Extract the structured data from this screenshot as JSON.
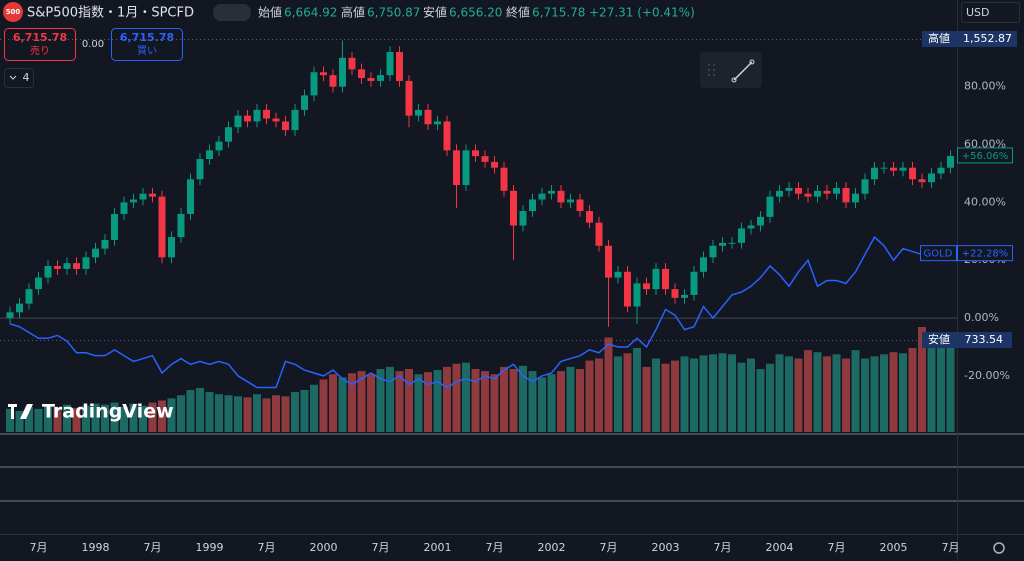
{
  "header": {
    "logo": "500",
    "symbol": "S&P500指数・1月・SPCFD",
    "ohlc": [
      {
        "label": "始値",
        "value": "6,664.92"
      },
      {
        "label": "高値",
        "value": "6,750.87"
      },
      {
        "label": "安値",
        "value": "6,656.20"
      },
      {
        "label": "終値",
        "value": "6,715.78"
      }
    ],
    "change": "+27.31 (+0.41%)"
  },
  "order": {
    "sell_price": "6,715.78",
    "sell_label": "売り",
    "spread": "0.00",
    "buy_price": "6,715.78",
    "buy_label": "買い"
  },
  "indicators_count": "4",
  "currency": "USD",
  "watermark": "TradingView",
  "chart_data": {
    "type": "candlestick",
    "categories": [
      null,
      null,
      null,
      "7月",
      null,
      null,
      null,
      null,
      null,
      "1998",
      null,
      null,
      null,
      null,
      null,
      "7月",
      null,
      null,
      null,
      null,
      null,
      "1999",
      null,
      null,
      null,
      null,
      null,
      "7月",
      null,
      null,
      null,
      null,
      null,
      "2000",
      null,
      null,
      null,
      null,
      null,
      "7月",
      null,
      null,
      null,
      null,
      null,
      "2001",
      null,
      null,
      null,
      null,
      null,
      "7月",
      null,
      null,
      null,
      null,
      null,
      "2002",
      null,
      null,
      null,
      null,
      null,
      "7月",
      null,
      null,
      null,
      null,
      null,
      "2003",
      null,
      null,
      null,
      null,
      null,
      "7月",
      null,
      null,
      null,
      null,
      null,
      "2004",
      null,
      null,
      null,
      null,
      null,
      "7月",
      null,
      null,
      null,
      null,
      null,
      "2005",
      null,
      null,
      null,
      null,
      null,
      "7月"
    ],
    "open": [
      0,
      2,
      5,
      10,
      14,
      18,
      17,
      19,
      17,
      21,
      24,
      27,
      36,
      40,
      41,
      43,
      42,
      21,
      28,
      36,
      48,
      55,
      58,
      61,
      66,
      70,
      68,
      72,
      69,
      68,
      65,
      72,
      77,
      85,
      84,
      80,
      90,
      86,
      83,
      82,
      84,
      92,
      82,
      70,
      72,
      67,
      68,
      58,
      46,
      58,
      56,
      54,
      52,
      44,
      32,
      37,
      41,
      43,
      44,
      40,
      41,
      37,
      33,
      25,
      14,
      16,
      4,
      12,
      10,
      17,
      10,
      7,
      8,
      16,
      21,
      25,
      26,
      26,
      31,
      32,
      35,
      42,
      44,
      45,
      43,
      42,
      44,
      43,
      45,
      40,
      43,
      48,
      52,
      52,
      51,
      52,
      48,
      47,
      50,
      52
    ],
    "high": [
      4,
      7,
      12,
      16,
      20,
      20,
      21,
      21,
      23,
      26,
      29,
      38,
      42,
      43,
      45,
      45,
      44,
      30,
      38,
      50,
      57,
      60,
      63,
      68,
      72,
      72,
      74,
      74,
      71,
      70,
      74,
      79,
      87,
      87,
      86,
      96,
      92,
      88,
      85,
      86,
      94,
      94,
      84,
      74,
      74,
      70,
      70,
      60,
      60,
      60,
      58,
      56,
      54,
      46,
      39,
      43,
      45,
      46,
      46,
      43,
      43,
      39,
      35,
      27,
      18,
      18,
      14,
      14,
      19,
      19,
      12,
      10,
      18,
      23,
      27,
      28,
      28,
      33,
      34,
      37,
      44,
      46,
      47,
      47,
      45,
      46,
      46,
      47,
      47,
      45,
      50,
      54,
      54,
      54,
      54,
      54,
      50,
      52,
      54,
      58
    ],
    "low": [
      -2,
      0,
      3,
      8,
      12,
      15,
      15,
      15,
      15,
      19,
      22,
      25,
      34,
      38,
      39,
      40,
      19,
      19,
      26,
      34,
      46,
      53,
      56,
      59,
      64,
      66,
      66,
      67,
      66,
      63,
      63,
      70,
      75,
      82,
      78,
      78,
      84,
      81,
      80,
      80,
      82,
      80,
      66,
      68,
      65,
      65,
      56,
      38,
      44,
      54,
      52,
      50,
      42,
      20,
      30,
      35,
      39,
      41,
      38,
      38,
      35,
      31,
      23,
      -3,
      12,
      2,
      -2,
      8,
      8,
      8,
      5,
      5,
      6,
      14,
      19,
      23,
      24,
      24,
      29,
      30,
      33,
      40,
      42,
      41,
      40,
      40,
      41,
      41,
      38,
      38,
      41,
      46,
      50,
      49,
      49,
      46,
      45,
      45,
      48,
      50
    ],
    "close": [
      2,
      5,
      10,
      14,
      18,
      17,
      19,
      17,
      21,
      24,
      27,
      36,
      40,
      41,
      43,
      42,
      21,
      28,
      36,
      48,
      55,
      58,
      61,
      66,
      70,
      68,
      72,
      69,
      68,
      65,
      72,
      77,
      85,
      84,
      80,
      90,
      86,
      83,
      82,
      84,
      92,
      82,
      70,
      72,
      67,
      68,
      58,
      46,
      58,
      56,
      54,
      52,
      44,
      32,
      37,
      41,
      43,
      44,
      40,
      41,
      37,
      33,
      25,
      14,
      16,
      4,
      12,
      10,
      17,
      10,
      7,
      8,
      16,
      21,
      25,
      26,
      26,
      31,
      32,
      35,
      42,
      44,
      45,
      43,
      42,
      44,
      43,
      45,
      40,
      43,
      48,
      52,
      52,
      51,
      52,
      48,
      47,
      50,
      52,
      56.06
    ],
    "volume": [
      22,
      20,
      24,
      22,
      25,
      24,
      26,
      23,
      25,
      27,
      26,
      28,
      24,
      27,
      25,
      28,
      30,
      32,
      35,
      40,
      42,
      38,
      36,
      35,
      34,
      33,
      36,
      32,
      35,
      34,
      38,
      40,
      45,
      50,
      55,
      52,
      56,
      58,
      55,
      60,
      62,
      58,
      60,
      55,
      57,
      59,
      62,
      65,
      66,
      60,
      58,
      55,
      62,
      60,
      63,
      58,
      52,
      55,
      58,
      62,
      60,
      68,
      70,
      90,
      72,
      75,
      80,
      62,
      70,
      65,
      68,
      72,
      70,
      73,
      74,
      75,
      74,
      66,
      70,
      60,
      65,
      74,
      72,
      70,
      78,
      76,
      72,
      74,
      70,
      78,
      70,
      72,
      74,
      76,
      75,
      80,
      100,
      90,
      92,
      95
    ],
    "up_color": "#089981",
    "down_color": "#f23645",
    "volume_up_color": "#1d6a64",
    "volume_down_color": "#8e3a3f",
    "last_label": "+56.06%",
    "series": [
      {
        "name": "GOLD",
        "color": "#2962ff",
        "last_label": "+22.28%",
        "values": [
          -2,
          -3,
          -5,
          -7,
          -7,
          -6,
          -8,
          -12,
          -12,
          -13,
          -13,
          -11,
          -13,
          -15,
          -14,
          -13,
          -19,
          -16,
          -14,
          -16,
          -15,
          -16,
          -15,
          -16,
          -20,
          -22,
          -24,
          -24,
          -24,
          -15,
          -16,
          -18,
          -19,
          -20,
          -18,
          -21,
          -23,
          -21,
          -19,
          -21,
          -22,
          -20,
          -23,
          -21,
          -23,
          -22,
          -24,
          -22,
          -21,
          -22,
          -20,
          -21,
          -18,
          -16,
          -20,
          -22,
          -20,
          -19,
          -15,
          -14,
          -13,
          -11,
          -12,
          -9,
          -10,
          -10,
          -7,
          -10,
          -4,
          3,
          1,
          -4,
          -3,
          4,
          0,
          4,
          8,
          9,
          11,
          14,
          18,
          15,
          11,
          16,
          20,
          11,
          13,
          13,
          12,
          16,
          22,
          28,
          25,
          20,
          24,
          23,
          22,
          22,
          22,
          22.28
        ]
      }
    ],
    "ylim": [
      -39.4,
      101
    ],
    "yticks": [
      {
        "value": 80,
        "label": "80.00%"
      },
      {
        "value": 60,
        "label": "60.00%"
      },
      {
        "value": 40,
        "label": "40.00%"
      },
      {
        "value": 20,
        "label": "20.00%"
      },
      {
        "value": 0,
        "label": "0.00%"
      },
      {
        "value": -20,
        "label": "-20.00%"
      }
    ],
    "grid": false,
    "high_marker": {
      "label": "高値",
      "value": "1,552.87"
    },
    "low_marker": {
      "label": "安値",
      "value": "733.54"
    }
  }
}
